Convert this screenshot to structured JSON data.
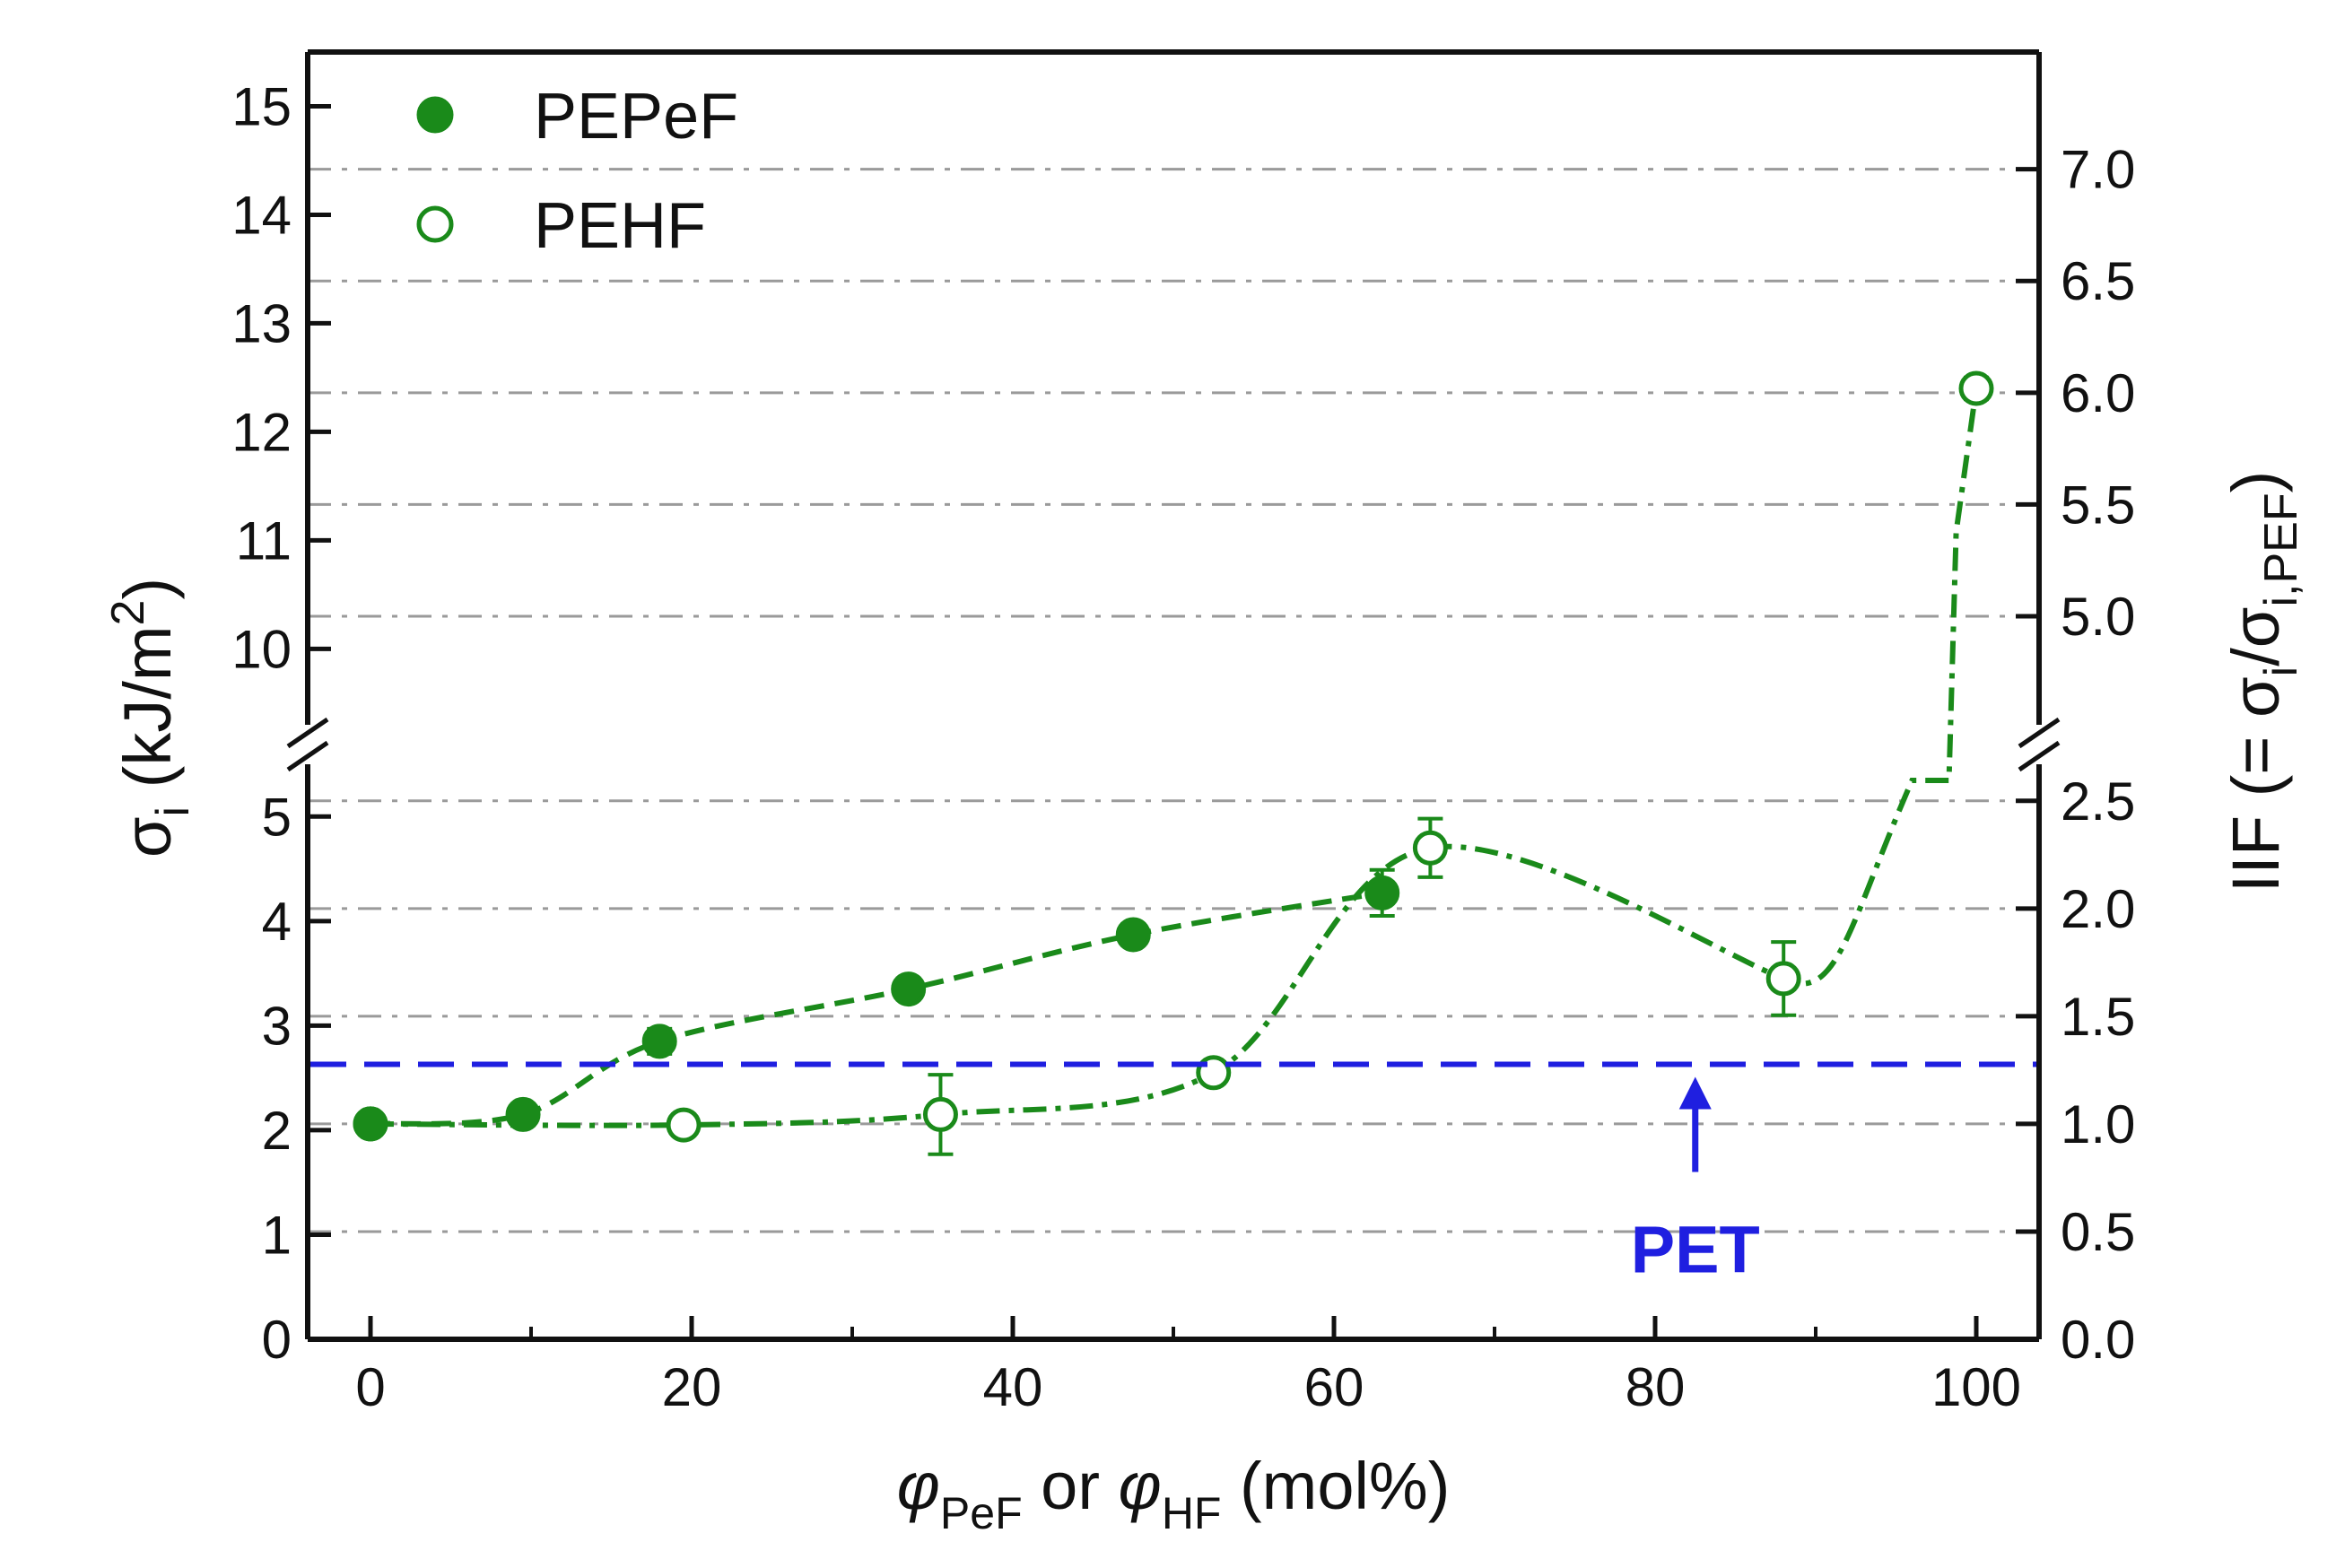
{
  "chart_data": {
    "type": "scatter",
    "title": "",
    "xlabel": {
      "symbol": "φ",
      "sub1": "PeF",
      "mid": " or ",
      "sub2": "HF",
      "unit": "  (mol%)"
    },
    "ylabel_left": {
      "symbol": "σ",
      "sub": "i",
      "unit": "(kJ/m",
      "sup": "2",
      "close": ")"
    },
    "ylabel_right": {
      "main": "IIF (= σ",
      "sub1": "i",
      "slash": "/σ",
      "sub2": "i,PEF",
      "close": ")"
    },
    "xlim": [
      0,
      100
    ],
    "ylim_lower": [
      0,
      5.5
    ],
    "ylim_upper": [
      9.3,
      15.5
    ],
    "axis_break": "between 5.5 and 9.3 kJ/m2",
    "x_ticks": [
      "0",
      "20",
      "40",
      "60",
      "80",
      "100"
    ],
    "x_tick_values": [
      0,
      20,
      40,
      60,
      80,
      100
    ],
    "y_ticks_left": [
      {
        "label": "0",
        "value": 0
      },
      {
        "label": "1",
        "value": 1
      },
      {
        "label": "2",
        "value": 2
      },
      {
        "label": "3",
        "value": 3
      },
      {
        "label": "4",
        "value": 4
      },
      {
        "label": "5",
        "value": 5
      },
      {
        "label": "10",
        "value": 10
      },
      {
        "label": "11",
        "value": 11
      },
      {
        "label": "12",
        "value": 12
      },
      {
        "label": "13",
        "value": 13
      },
      {
        "label": "14",
        "value": 14
      },
      {
        "label": "15",
        "value": 15
      }
    ],
    "y_ticks_right": [
      {
        "label": "0.0",
        "value": 0.0
      },
      {
        "label": "0.5",
        "value": 1.03
      },
      {
        "label": "1.0",
        "value": 2.06
      },
      {
        "label": "1.5",
        "value": 3.09
      },
      {
        "label": "2.0",
        "value": 4.12
      },
      {
        "label": "2.5",
        "value": 5.15
      },
      {
        "label": "5.0",
        "value": 10.3
      },
      {
        "label": "5.5",
        "value": 11.33
      },
      {
        "label": "6.0",
        "value": 12.36
      },
      {
        "label": "6.5",
        "value": 13.39
      },
      {
        "label": "7.0",
        "value": 14.42
      }
    ],
    "gridlines": "dashed horizontal at right-axis ticks",
    "legend": {
      "position": "top-left"
    },
    "series": [
      {
        "name": "PEPeF",
        "marker": "filled-circle",
        "color": "#1a8a1a",
        "line_style": "dashed",
        "x": [
          0,
          9.5,
          18,
          33.5,
          47.5,
          63
        ],
        "y": [
          2.06,
          2.15,
          2.85,
          3.35,
          3.87,
          4.27
        ],
        "err": [
          0.05,
          0.1,
          0.12,
          0.1,
          0.1,
          0.22
        ]
      },
      {
        "name": "PEHF",
        "marker": "open-circle",
        "color": "#1a8a1a",
        "line_style": "dash-dot",
        "x": [
          0,
          19.5,
          35.5,
          52.5,
          66,
          88,
          100
        ],
        "y": [
          2.06,
          2.05,
          2.15,
          2.55,
          4.7,
          3.45,
          12.4
        ],
        "err": [
          0.05,
          0.1,
          0.38,
          0.1,
          0.28,
          0.35,
          0.1
        ]
      }
    ],
    "reference_line": {
      "label": "PET",
      "y": 2.63,
      "color": "#1f1fe0",
      "style": "dashed",
      "arrow_x": 82.5
    }
  }
}
